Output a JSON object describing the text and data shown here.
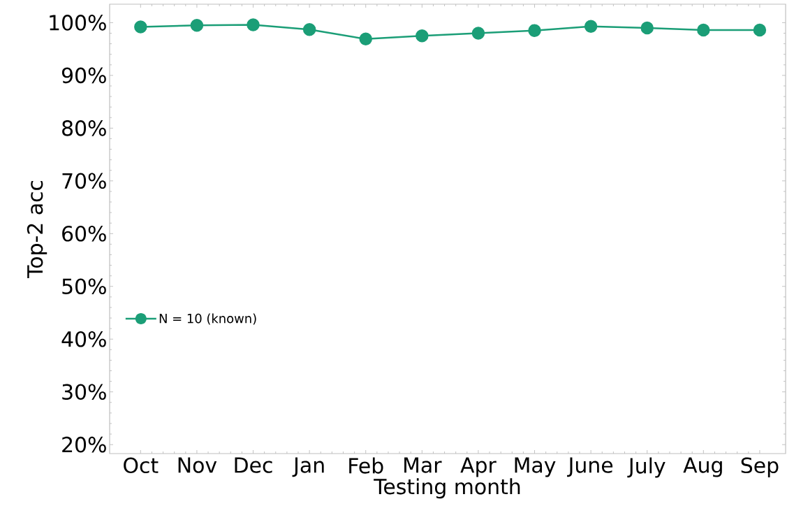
{
  "chart_data": {
    "type": "line",
    "xlabel": "Testing month",
    "ylabel": "Top-2 acc",
    "categories": [
      "Oct",
      "Nov",
      "Dec",
      "Jan",
      "Feb",
      "Mar",
      "Apr",
      "May",
      "June",
      "July",
      "Aug",
      "Sep"
    ],
    "series": [
      {
        "name": "N = 10 (known)",
        "color": "#1b9e77",
        "values": [
          99.2,
          99.5,
          99.6,
          98.7,
          96.9,
          97.5,
          98.0,
          98.5,
          99.3,
          99.0,
          98.6,
          98.6
        ]
      }
    ],
    "ylim": [
      18.3,
      103.5
    ],
    "yticks": [
      {
        "value": 20,
        "label": "20%"
      },
      {
        "value": 30,
        "label": "30%"
      },
      {
        "value": 40,
        "label": "40%"
      },
      {
        "value": 50,
        "label": "50%"
      },
      {
        "value": 60,
        "label": "60%"
      },
      {
        "value": 70,
        "label": "70%"
      },
      {
        "value": 80,
        "label": "80%"
      },
      {
        "value": 90,
        "label": "90%"
      },
      {
        "value": 100,
        "label": "100%"
      }
    ],
    "legend": "left",
    "marker": "circle",
    "line_style": "solid",
    "grid": false
  }
}
